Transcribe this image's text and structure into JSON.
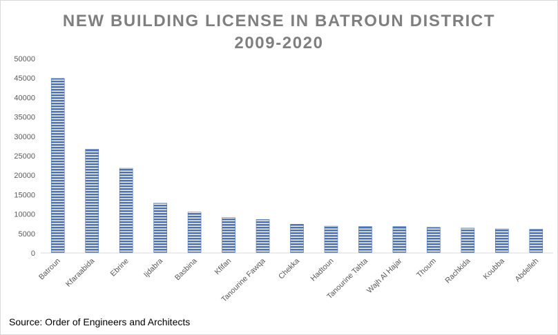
{
  "chart_data": {
    "type": "bar",
    "title_lines": [
      "NEW BUILDING LICENSE IN BATROUN DISTRICT",
      "2009-2020"
    ],
    "categories": [
      "Batroun",
      "Kfaraabida",
      "Ebrine",
      "Ijdabra",
      "Basbina",
      "Kfifan",
      "Tanourine Fawqa",
      "Chekka",
      "Hadtoun",
      "Tanourine Tahta",
      "Wajh Al Hajar",
      "Thoum",
      "Rachkida",
      "Koubba",
      "Abdelleh"
    ],
    "values": [
      44900,
      26700,
      21800,
      12800,
      10500,
      9100,
      8600,
      7400,
      6900,
      6800,
      6800,
      6600,
      6400,
      6200,
      6100
    ],
    "ylim": [
      0,
      50000
    ],
    "yticks": [
      "0",
      "5000",
      "10000",
      "15000",
      "20000",
      "25000",
      "30000",
      "35000",
      "40000",
      "45000",
      "50000"
    ],
    "xlabel": "",
    "ylabel": "",
    "grid": false,
    "legend": "none",
    "bar_color": "#4472c4",
    "bar_pattern": "horizontal-stripes",
    "source": "Source: Order of Engineers and Architects"
  }
}
